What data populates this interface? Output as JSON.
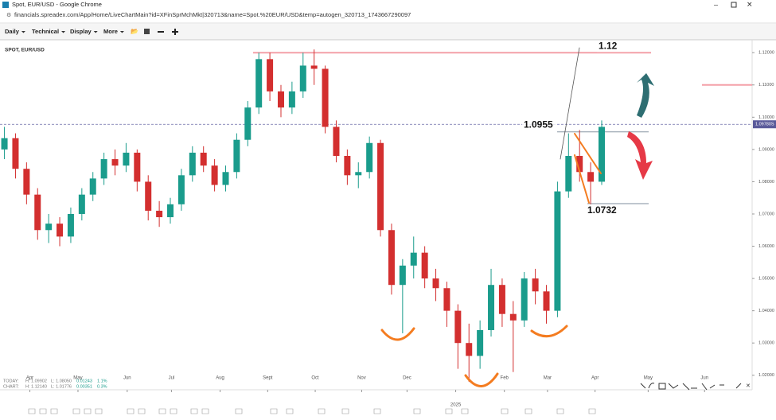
{
  "window": {
    "title": "Spot, EUR/USD - Google Chrome",
    "url": "financials.spreadex.com/App/Home/LiveChartMain?id=XFinSprMchMkt|320713&name=Spot.%20EUR/USD&temp=autogen_320713_1743667290097"
  },
  "toolbar": {
    "items": [
      "Daily",
      "Technical",
      "Display",
      "More"
    ]
  },
  "chart_data": {
    "type": "candlestick",
    "title": "SPOT, EUR/USD",
    "open": [
      1.09,
      1.0935,
      1.084,
      1.076,
      1.065,
      1.067,
      1.063,
      1.07,
      1.076,
      1.081,
      1.087,
      1.085,
      1.089,
      1.08,
      1.071,
      1.069,
      1.073,
      1.082,
      1.089,
      1.085,
      1.079,
      1.083,
      1.093,
      1.103,
      1.118,
      1.108,
      1.103,
      1.108,
      1.116,
      1.115,
      1.097,
      1.088,
      1.082,
      1.083,
      1.092,
      1.065,
      1.048,
      1.054,
      1.058,
      1.05,
      1.047,
      1.04,
      1.03,
      1.026,
      1.034,
      1.048,
      1.039,
      1.037,
      1.05,
      1.046,
      1.04,
      1.077,
      1.088,
      1.083,
      1.08
    ],
    "high": [
      1.097,
      1.095,
      1.086,
      1.078,
      1.07,
      1.069,
      1.072,
      1.078,
      1.083,
      1.089,
      1.09,
      1.092,
      1.09,
      1.082,
      1.074,
      1.075,
      1.084,
      1.091,
      1.091,
      1.087,
      1.085,
      1.095,
      1.105,
      1.12,
      1.12,
      1.11,
      1.111,
      1.12,
      1.121,
      1.116,
      1.099,
      1.09,
      1.086,
      1.094,
      1.093,
      1.067,
      1.056,
      1.063,
      1.06,
      1.053,
      1.049,
      1.042,
      1.036,
      1.037,
      1.053,
      1.05,
      1.043,
      1.052,
      1.053,
      1.048,
      1.08,
      1.095,
      1.096,
      1.086,
      1.099
    ],
    "low": [
      1.087,
      1.081,
      1.073,
      1.062,
      1.061,
      1.06,
      1.061,
      1.068,
      1.074,
      1.079,
      1.082,
      1.083,
      1.077,
      1.068,
      1.066,
      1.067,
      1.071,
      1.08,
      1.083,
      1.077,
      1.077,
      1.081,
      1.091,
      1.101,
      1.105,
      1.1,
      1.101,
      1.106,
      1.11,
      1.095,
      1.086,
      1.079,
      1.078,
      1.081,
      1.063,
      1.045,
      1.033,
      1.05,
      1.047,
      1.043,
      1.035,
      1.022,
      1.018,
      1.022,
      1.032,
      1.035,
      1.021,
      1.035,
      1.042,
      1.036,
      1.038,
      1.075,
      1.08,
      1.073,
      1.079
    ],
    "close": [
      1.0935,
      1.084,
      1.076,
      1.065,
      1.067,
      1.063,
      1.07,
      1.076,
      1.081,
      1.087,
      1.085,
      1.089,
      1.08,
      1.071,
      1.069,
      1.073,
      1.082,
      1.089,
      1.085,
      1.079,
      1.083,
      1.093,
      1.103,
      1.118,
      1.108,
      1.103,
      1.108,
      1.116,
      1.115,
      1.097,
      1.088,
      1.082,
      1.083,
      1.092,
      1.065,
      1.048,
      1.054,
      1.058,
      1.05,
      1.047,
      1.04,
      1.03,
      1.026,
      1.034,
      1.048,
      1.039,
      1.037,
      1.05,
      1.046,
      1.04,
      1.077,
      1.088,
      1.083,
      1.08,
      1.097
    ],
    "up_color": "#1a9c8c",
    "down_color": "#d32f2f",
    "xlim": [
      0,
      68
    ],
    "xticks": [
      {
        "value": 2.7,
        "label": "Apr"
      },
      {
        "value": 7.05,
        "label": "May"
      },
      {
        "value": 11.5,
        "label": "Jun"
      },
      {
        "value": 15.5,
        "label": "Jul"
      },
      {
        "value": 19.9,
        "label": "Aug"
      },
      {
        "value": 24.2,
        "label": "Sept"
      },
      {
        "value": 28.5,
        "label": "Oct"
      },
      {
        "value": 32.7,
        "label": "Nov"
      },
      {
        "value": 36.8,
        "label": "Dec"
      },
      {
        "value": 41.2,
        "label": "2025"
      },
      {
        "value": 45.6,
        "label": "Feb"
      },
      {
        "value": 49.5,
        "label": "Mar"
      },
      {
        "value": 53.8,
        "label": "Apr"
      },
      {
        "value": 58.6,
        "label": "May"
      },
      {
        "value": 63.7,
        "label": "Jun"
      }
    ],
    "ylim": [
      1.0155,
      1.124
    ],
    "yticks": [
      {
        "value": 1.12,
        "label": "1.12000"
      },
      {
        "value": 1.11,
        "label": "1.11000"
      },
      {
        "value": 1.1,
        "label": "1.10000"
      },
      {
        "value": 1.09,
        "label": "1.09000"
      },
      {
        "value": 1.08,
        "label": "1.08000"
      },
      {
        "value": 1.07,
        "label": "1.07000"
      },
      {
        "value": 1.06,
        "label": "1.06000"
      },
      {
        "value": 1.05,
        "label": "1.05000"
      },
      {
        "value": 1.04,
        "label": "1.04000"
      },
      {
        "value": 1.03,
        "label": "1.03000"
      },
      {
        "value": 1.02,
        "label": "1.02000"
      }
    ],
    "current_price": {
      "value": 1.0978,
      "label": "1.09780S"
    },
    "levels": [
      {
        "value": 1.12,
        "color": "#f4a0a8"
      },
      {
        "value": 1.11,
        "color": "#f4a0a8"
      },
      {
        "value": 1.0955,
        "color": "#aab4be"
      },
      {
        "value": 1.0732,
        "color": "#aab4be"
      }
    ],
    "annotations": [
      1.12,
      1.0955,
      1.0732
    ],
    "stats": [
      [
        "TODAY:",
        "H: 1.09902",
        "L: 1.08050",
        "0.01243",
        "1.1%"
      ],
      [
        "CHART:",
        "H: 1.12140",
        "L: 1.01776",
        "0.00351",
        "0.3%"
      ]
    ]
  }
}
